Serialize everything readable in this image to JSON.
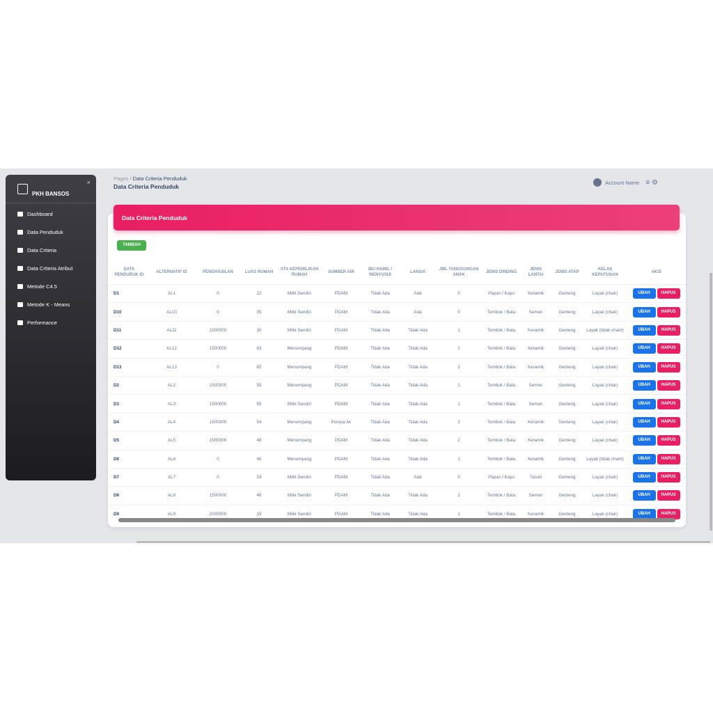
{
  "sidebar": {
    "brand": "PKH BANSOS",
    "close": "×",
    "menu": [
      "Dashboard",
      "Data Penduduk",
      "Data Criteria",
      "Data Criteria Atribut",
      "Metode C4.5",
      "Metode K - Means",
      "Performance"
    ]
  },
  "header": {
    "breadcrumb": [
      "Pages",
      "/",
      "Data Criteria Penduduk"
    ],
    "title": "Data Criteria Penduduk",
    "account": "Account Name"
  },
  "card": {
    "title": "Data Criteria Penduduk",
    "add_button": "TAMBAH"
  },
  "table": {
    "columns": [
      "DATA PENDUDUK ID",
      "ALTERNATIF ID",
      "PENGHASILAN",
      "LUAS RUMAH",
      "STA KEPEMILIKAN RUMAH",
      "SUMBER AIR",
      "IBU HAMIL / MENYUSUI",
      "LANSIA",
      "JML TANGGUNGAN ANAK",
      "JENIS DINDING",
      "JENIS LANTAI",
      "JENIS ATAP",
      "KELAS KEPUTUSAN",
      "AKSI"
    ],
    "actions": [
      "UBAH",
      "HAPUS"
    ],
    "rows": [
      [
        "D1",
        "AL1",
        0,
        12,
        "Milik Sendiri",
        "PDAM",
        "Tidak Ada",
        "Ada",
        0,
        "Papan / Kayu",
        "Keramik",
        "Genteng",
        "Layak (chair)"
      ],
      [
        "D10",
        "AL10",
        0,
        35,
        "Milik Sendiri",
        "PDAM",
        "Tidak Ada",
        "Ada",
        0,
        "Tembok / Bata",
        "Semen",
        "Genteng",
        "Layak (chair)"
      ],
      [
        "D11",
        "AL11",
        1500000,
        30,
        "Milik Sendiri",
        "PDAM",
        "Tidak Ada",
        "Tidak Ada",
        1,
        "Tembok / Bata",
        "Keramik",
        "Genteng",
        "Layak (tidak chairr)"
      ],
      [
        "D12",
        "AL12",
        1500000,
        63,
        "Menumpang",
        "PDAM",
        "Tidak Ada",
        "Tidak Ada",
        2,
        "Tembok / Bata",
        "Keramik",
        "Genteng",
        "Layak (chair)"
      ],
      [
        "D13",
        "AL13",
        0,
        82,
        "Menumpang",
        "PDAM",
        "Tidak Ada",
        "Tidak Ada",
        2,
        "Tembok / Bata",
        "Keramik",
        "Genteng",
        "Layak (chair)"
      ],
      [
        "D2",
        "AL2",
        1500000,
        55,
        "Menumpang",
        "PDAM",
        "Tidak Ada",
        "Tidak Ada",
        1,
        "Tembok / Bata",
        "Semen",
        "Genteng",
        "Layak (chair)"
      ],
      [
        "D3",
        "AL3",
        1500000,
        55,
        "Milik Sendiri",
        "PDAM",
        "Tidak Ada",
        "Tidak Ada",
        1,
        "Tembok / Bata",
        "Semen",
        "Genteng",
        "Layak (chair)"
      ],
      [
        "D4",
        "AL4",
        1500000,
        54,
        "Menumpang",
        "Pompa Air",
        "Tidak Ada",
        "Tidak Ada",
        2,
        "Tembok / Bata",
        "Keramik",
        "Genteng",
        "Layak (chair)"
      ],
      [
        "D5",
        "AL5",
        1500000,
        48,
        "Menumpang",
        "PDAM",
        "Tidak Ada",
        "Tidak Ada",
        2,
        "Tembok / Bata",
        "Keramik",
        "Genteng",
        "Layak (chair)"
      ],
      [
        "D6",
        "AL6",
        0,
        48,
        "Menumpang",
        "PDAM",
        "Tidak Ada",
        "Tidak Ada",
        1,
        "Tembok / Bata",
        "Keramik",
        "Genteng",
        "Layak (tidak chairr)"
      ],
      [
        "D7",
        "AL7",
        0,
        24,
        "Milik Sendiri",
        "PDAM",
        "Tidak Ada",
        "Ada",
        0,
        "Papan / Kayu",
        "Tanah",
        "Genteng",
        "Layak (chair)"
      ],
      [
        "D8",
        "AL8",
        1500000,
        48,
        "Milik Sendiri",
        "PDAM",
        "Tidak Ada",
        "Tidak Ada",
        2,
        "Tembok / Bata",
        "Semen",
        "Genteng",
        "Layak (chair)"
      ],
      [
        "D9",
        "AL9",
        2000000,
        15,
        "Milik Sendiri",
        "PDAM",
        "Tidak Ada",
        "Tidak Ada",
        1,
        "Tembok / Bata",
        "Keramik",
        "Genteng",
        "Layak (chair)"
      ]
    ]
  }
}
